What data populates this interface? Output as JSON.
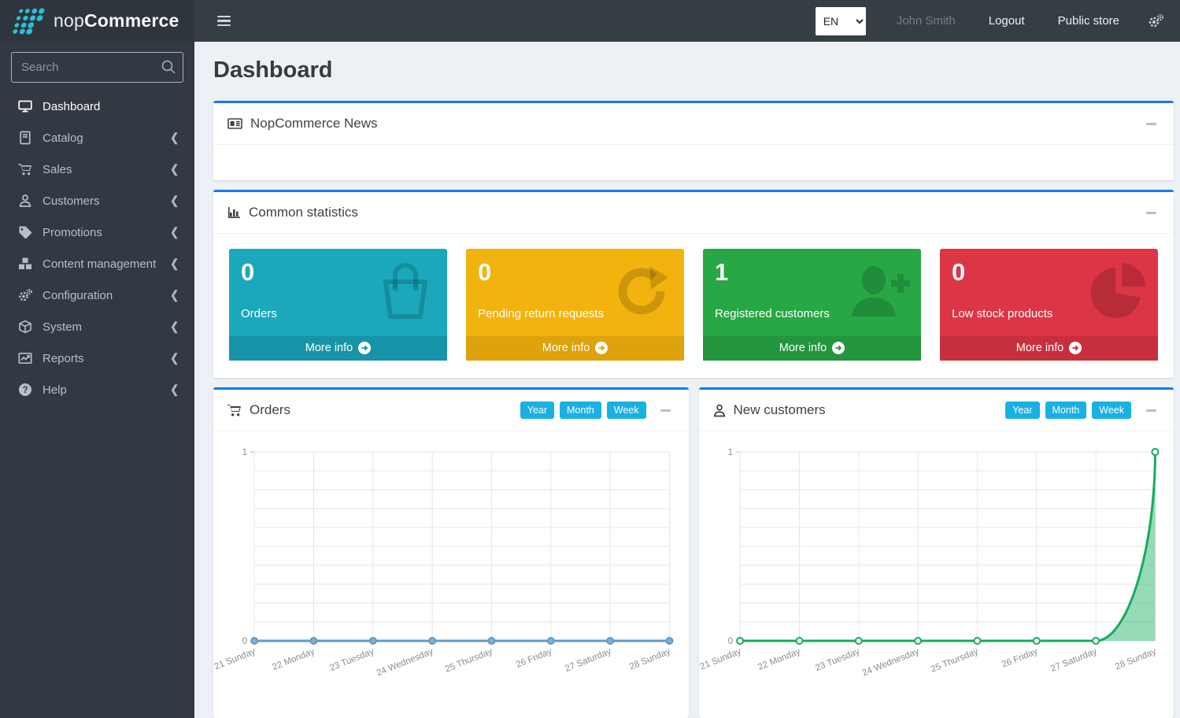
{
  "topbar": {
    "brand_light": "nop",
    "brand_bold": "Commerce",
    "language_selected": "EN",
    "user_name": "John Smith",
    "logout_label": "Logout",
    "public_store_label": "Public store"
  },
  "sidebar": {
    "search_placeholder": "Search",
    "items": [
      {
        "label": "Dashboard",
        "icon": "desktop-icon",
        "active": true,
        "expandable": false
      },
      {
        "label": "Catalog",
        "icon": "book-icon",
        "active": false,
        "expandable": true
      },
      {
        "label": "Sales",
        "icon": "cart-icon",
        "active": false,
        "expandable": true
      },
      {
        "label": "Customers",
        "icon": "user-icon",
        "active": false,
        "expandable": true
      },
      {
        "label": "Promotions",
        "icon": "tag-icon",
        "active": false,
        "expandable": true
      },
      {
        "label": "Content management",
        "icon": "cubes-icon",
        "active": false,
        "expandable": true
      },
      {
        "label": "Configuration",
        "icon": "gears-icon",
        "active": false,
        "expandable": true
      },
      {
        "label": "System",
        "icon": "cube-icon",
        "active": false,
        "expandable": true
      },
      {
        "label": "Reports",
        "icon": "chart-line-icon",
        "active": false,
        "expandable": true
      },
      {
        "label": "Help",
        "icon": "question-icon",
        "active": false,
        "expandable": true
      }
    ]
  },
  "page": {
    "title": "Dashboard"
  },
  "panels": {
    "news": {
      "title": "NopCommerce News",
      "icon": "newspaper-icon"
    },
    "stats": {
      "title": "Common statistics",
      "icon": "bar-chart-icon"
    },
    "orders": {
      "title": "Orders",
      "icon": "cart-icon"
    },
    "customers": {
      "title": "New customers",
      "icon": "user-icon"
    }
  },
  "stat_cards": [
    {
      "value": "0",
      "label": "Orders",
      "more_label": "More info",
      "color": "#1ba8bd",
      "foot_color": "#1794a7",
      "icon": "shopping-bag-icon"
    },
    {
      "value": "0",
      "label": "Pending return requests",
      "more_label": "More info",
      "color": "#f3b30f",
      "foot_color": "#dda20c",
      "icon": "refresh-icon"
    },
    {
      "value": "1",
      "label": "Registered customers",
      "more_label": "More info",
      "color": "#28a745",
      "foot_color": "#23953d",
      "icon": "user-plus-icon"
    },
    {
      "value": "0",
      "label": "Low stock products",
      "more_label": "More info",
      "color": "#dc3545",
      "foot_color": "#c82f3e",
      "icon": "pie-chart-icon"
    }
  ],
  "range_buttons": [
    "Year",
    "Month",
    "Week"
  ],
  "chart_data": [
    {
      "type": "line",
      "title": "Orders",
      "x": [
        "21 Sunday",
        "22 Monday",
        "23 Tuesday",
        "24 Wednesday",
        "25 Thursday",
        "26 Friday",
        "27 Saturday",
        "28 Sunday"
      ],
      "series": [
        {
          "name": "Orders",
          "values": [
            0,
            0,
            0,
            0,
            0,
            0,
            0,
            0
          ]
        }
      ],
      "ylim": [
        0,
        1
      ],
      "yticks": [
        0,
        1
      ],
      "grid": true,
      "grid_divisions_y": 10,
      "legend": "none",
      "line_color": "#639ac4",
      "marker_fill": "#7fb0d3",
      "area_fill": null,
      "smooth": false
    },
    {
      "type": "line",
      "title": "New customers",
      "x": [
        "21 Sunday",
        "22 Monday",
        "23 Tuesday",
        "24 Wednesday",
        "25 Thursday",
        "26 Friday",
        "27 Saturday",
        "28 Sunday"
      ],
      "series": [
        {
          "name": "New customers",
          "values": [
            0,
            0,
            0,
            0,
            0,
            0,
            0,
            1
          ]
        }
      ],
      "ylim": [
        0,
        1
      ],
      "yticks": [
        0,
        1
      ],
      "grid": true,
      "grid_divisions_y": 10,
      "legend": "none",
      "line_color": "#17ab5c",
      "marker_fill": "#ffffff",
      "area_fill": "rgba(44,184,114,0.5)",
      "smooth": true
    }
  ],
  "colors": {
    "panel_accent": "#1778f2",
    "range_button": "#19b0e3",
    "topbar_bg": "#363e45",
    "sidebar_bg": "#333942",
    "logo_dot": "#2bc0d4"
  }
}
